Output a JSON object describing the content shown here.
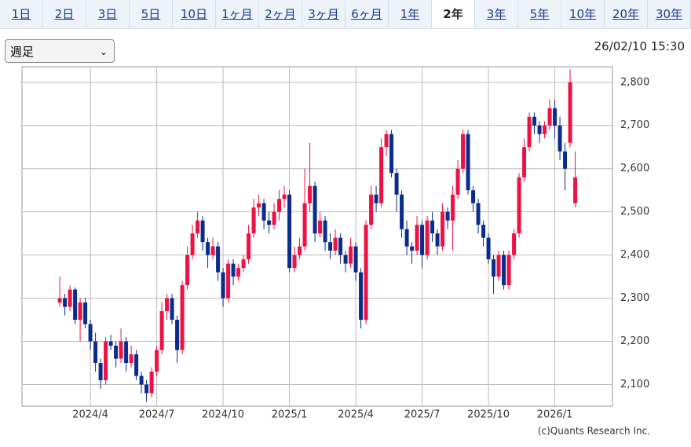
{
  "tabs": [
    "1日",
    "2日",
    "3日",
    "5日",
    "10日",
    "1ヶ月",
    "2ヶ月",
    "3ヶ月",
    "6ヶ月",
    "1年",
    "2年",
    "3年",
    "5年",
    "10年",
    "20年",
    "30年"
  ],
  "selected_tab_index": 10,
  "period_select": "週足",
  "timestamp": "26/02/10 15:30",
  "copyright": "(c)Quants Research Inc.",
  "chart_data": {
    "type": "candlestick",
    "up_color": "#ee1144",
    "down_color": "#0a2c8c",
    "grid": true,
    "ylim": [
      2050,
      2836
    ],
    "yticks": [
      {
        "value": 2100,
        "label": "2,100"
      },
      {
        "value": 2200,
        "label": "2,200"
      },
      {
        "value": 2300,
        "label": "2,300"
      },
      {
        "value": 2400,
        "label": "2,400"
      },
      {
        "value": 2500,
        "label": "2,500"
      },
      {
        "value": 2600,
        "label": "2,600"
      },
      {
        "value": 2700,
        "label": "2,700"
      },
      {
        "value": 2800,
        "label": "2,800"
      }
    ],
    "xlim": [
      -7.4,
      108.3
    ],
    "xticks": [
      {
        "value": 6,
        "label": "2024/4"
      },
      {
        "value": 19,
        "label": "2024/7"
      },
      {
        "value": 32,
        "label": "2024/10"
      },
      {
        "value": 45,
        "label": "2025/1"
      },
      {
        "value": 58,
        "label": "2025/4"
      },
      {
        "value": 71,
        "label": "2025/7"
      },
      {
        "value": 84,
        "label": "2025/10"
      },
      {
        "value": 97,
        "label": "2026/1"
      }
    ],
    "ohlc": [
      [
        2290,
        2350,
        2280,
        2300
      ],
      [
        2300,
        2310,
        2260,
        2280
      ],
      [
        2280,
        2330,
        2270,
        2320
      ],
      [
        2320,
        2325,
        2240,
        2250
      ],
      [
        2250,
        2300,
        2200,
        2290
      ],
      [
        2290,
        2300,
        2230,
        2240
      ],
      [
        2240,
        2250,
        2180,
        2200
      ],
      [
        2200,
        2220,
        2130,
        2150
      ],
      [
        2150,
        2160,
        2090,
        2110
      ],
      [
        2110,
        2210,
        2100,
        2200
      ],
      [
        2200,
        2215,
        2180,
        2190
      ],
      [
        2190,
        2200,
        2140,
        2160
      ],
      [
        2160,
        2230,
        2150,
        2200
      ],
      [
        2200,
        2210,
        2130,
        2150
      ],
      [
        2150,
        2190,
        2140,
        2170
      ],
      [
        2170,
        2180,
        2110,
        2120
      ],
      [
        2120,
        2130,
        2080,
        2100
      ],
      [
        2100,
        2110,
        2060,
        2080
      ],
      [
        2080,
        2140,
        2070,
        2130
      ],
      [
        2130,
        2190,
        2120,
        2180
      ],
      [
        2180,
        2290,
        2170,
        2270
      ],
      [
        2270,
        2310,
        2250,
        2300
      ],
      [
        2300,
        2310,
        2240,
        2250
      ],
      [
        2250,
        2260,
        2150,
        2180
      ],
      [
        2180,
        2340,
        2170,
        2330
      ],
      [
        2330,
        2420,
        2320,
        2400
      ],
      [
        2400,
        2470,
        2390,
        2450
      ],
      [
        2450,
        2500,
        2440,
        2480
      ],
      [
        2480,
        2490,
        2410,
        2430
      ],
      [
        2430,
        2440,
        2370,
        2400
      ],
      [
        2400,
        2440,
        2390,
        2420
      ],
      [
        2420,
        2430,
        2340,
        2360
      ],
      [
        2360,
        2370,
        2280,
        2300
      ],
      [
        2300,
        2390,
        2290,
        2380
      ],
      [
        2380,
        2390,
        2330,
        2350
      ],
      [
        2350,
        2380,
        2340,
        2370
      ],
      [
        2370,
        2400,
        2360,
        2390
      ],
      [
        2390,
        2470,
        2380,
        2450
      ],
      [
        2450,
        2530,
        2440,
        2510
      ],
      [
        2510,
        2540,
        2490,
        2520
      ],
      [
        2520,
        2530,
        2460,
        2480
      ],
      [
        2480,
        2500,
        2450,
        2470
      ],
      [
        2470,
        2520,
        2460,
        2500
      ],
      [
        2500,
        2550,
        2480,
        2530
      ],
      [
        2530,
        2560,
        2510,
        2540
      ],
      [
        2540,
        2550,
        2360,
        2370
      ],
      [
        2370,
        2420,
        2360,
        2400
      ],
      [
        2400,
        2440,
        2390,
        2420
      ],
      [
        2420,
        2600,
        2410,
        2520
      ],
      [
        2520,
        2660,
        2500,
        2560
      ],
      [
        2560,
        2570,
        2430,
        2450
      ],
      [
        2450,
        2500,
        2440,
        2480
      ],
      [
        2480,
        2490,
        2410,
        2430
      ],
      [
        2430,
        2450,
        2390,
        2410
      ],
      [
        2410,
        2460,
        2400,
        2440
      ],
      [
        2440,
        2450,
        2380,
        2400
      ],
      [
        2400,
        2410,
        2360,
        2380
      ],
      [
        2380,
        2440,
        2370,
        2420
      ],
      [
        2420,
        2430,
        2340,
        2360
      ],
      [
        2360,
        2370,
        2230,
        2250
      ],
      [
        2250,
        2480,
        2240,
        2470
      ],
      [
        2470,
        2560,
        2460,
        2540
      ],
      [
        2540,
        2560,
        2500,
        2520
      ],
      [
        2520,
        2670,
        2510,
        2650
      ],
      [
        2650,
        2690,
        2630,
        2680
      ],
      [
        2680,
        2690,
        2580,
        2590
      ],
      [
        2590,
        2600,
        2500,
        2540
      ],
      [
        2540,
        2550,
        2440,
        2460
      ],
      [
        2460,
        2480,
        2400,
        2420
      ],
      [
        2420,
        2430,
        2380,
        2410
      ],
      [
        2410,
        2490,
        2400,
        2470
      ],
      [
        2470,
        2480,
        2370,
        2400
      ],
      [
        2400,
        2490,
        2390,
        2480
      ],
      [
        2480,
        2500,
        2430,
        2450
      ],
      [
        2450,
        2460,
        2400,
        2420
      ],
      [
        2420,
        2520,
        2410,
        2500
      ],
      [
        2500,
        2510,
        2460,
        2480
      ],
      [
        2480,
        2560,
        2410,
        2540
      ],
      [
        2540,
        2620,
        2530,
        2600
      ],
      [
        2600,
        2690,
        2590,
        2680
      ],
      [
        2680,
        2690,
        2540,
        2550
      ],
      [
        2550,
        2560,
        2500,
        2520
      ],
      [
        2520,
        2530,
        2450,
        2470
      ],
      [
        2470,
        2480,
        2420,
        2440
      ],
      [
        2440,
        2450,
        2380,
        2390
      ],
      [
        2390,
        2400,
        2310,
        2350
      ],
      [
        2350,
        2410,
        2340,
        2400
      ],
      [
        2400,
        2410,
        2320,
        2330
      ],
      [
        2330,
        2410,
        2320,
        2400
      ],
      [
        2400,
        2460,
        2390,
        2450
      ],
      [
        2450,
        2590,
        2440,
        2580
      ],
      [
        2580,
        2670,
        2570,
        2650
      ],
      [
        2650,
        2730,
        2640,
        2720
      ],
      [
        2720,
        2730,
        2680,
        2700
      ],
      [
        2700,
        2710,
        2660,
        2680
      ],
      [
        2680,
        2710,
        2670,
        2700
      ],
      [
        2700,
        2760,
        2690,
        2740
      ],
      [
        2740,
        2760,
        2670,
        2700
      ],
      [
        2700,
        2720,
        2620,
        2640
      ],
      [
        2640,
        2660,
        2550,
        2600
      ],
      [
        2660,
        2830,
        2650,
        2800
      ],
      [
        2520,
        2640,
        2510,
        2580
      ]
    ]
  }
}
